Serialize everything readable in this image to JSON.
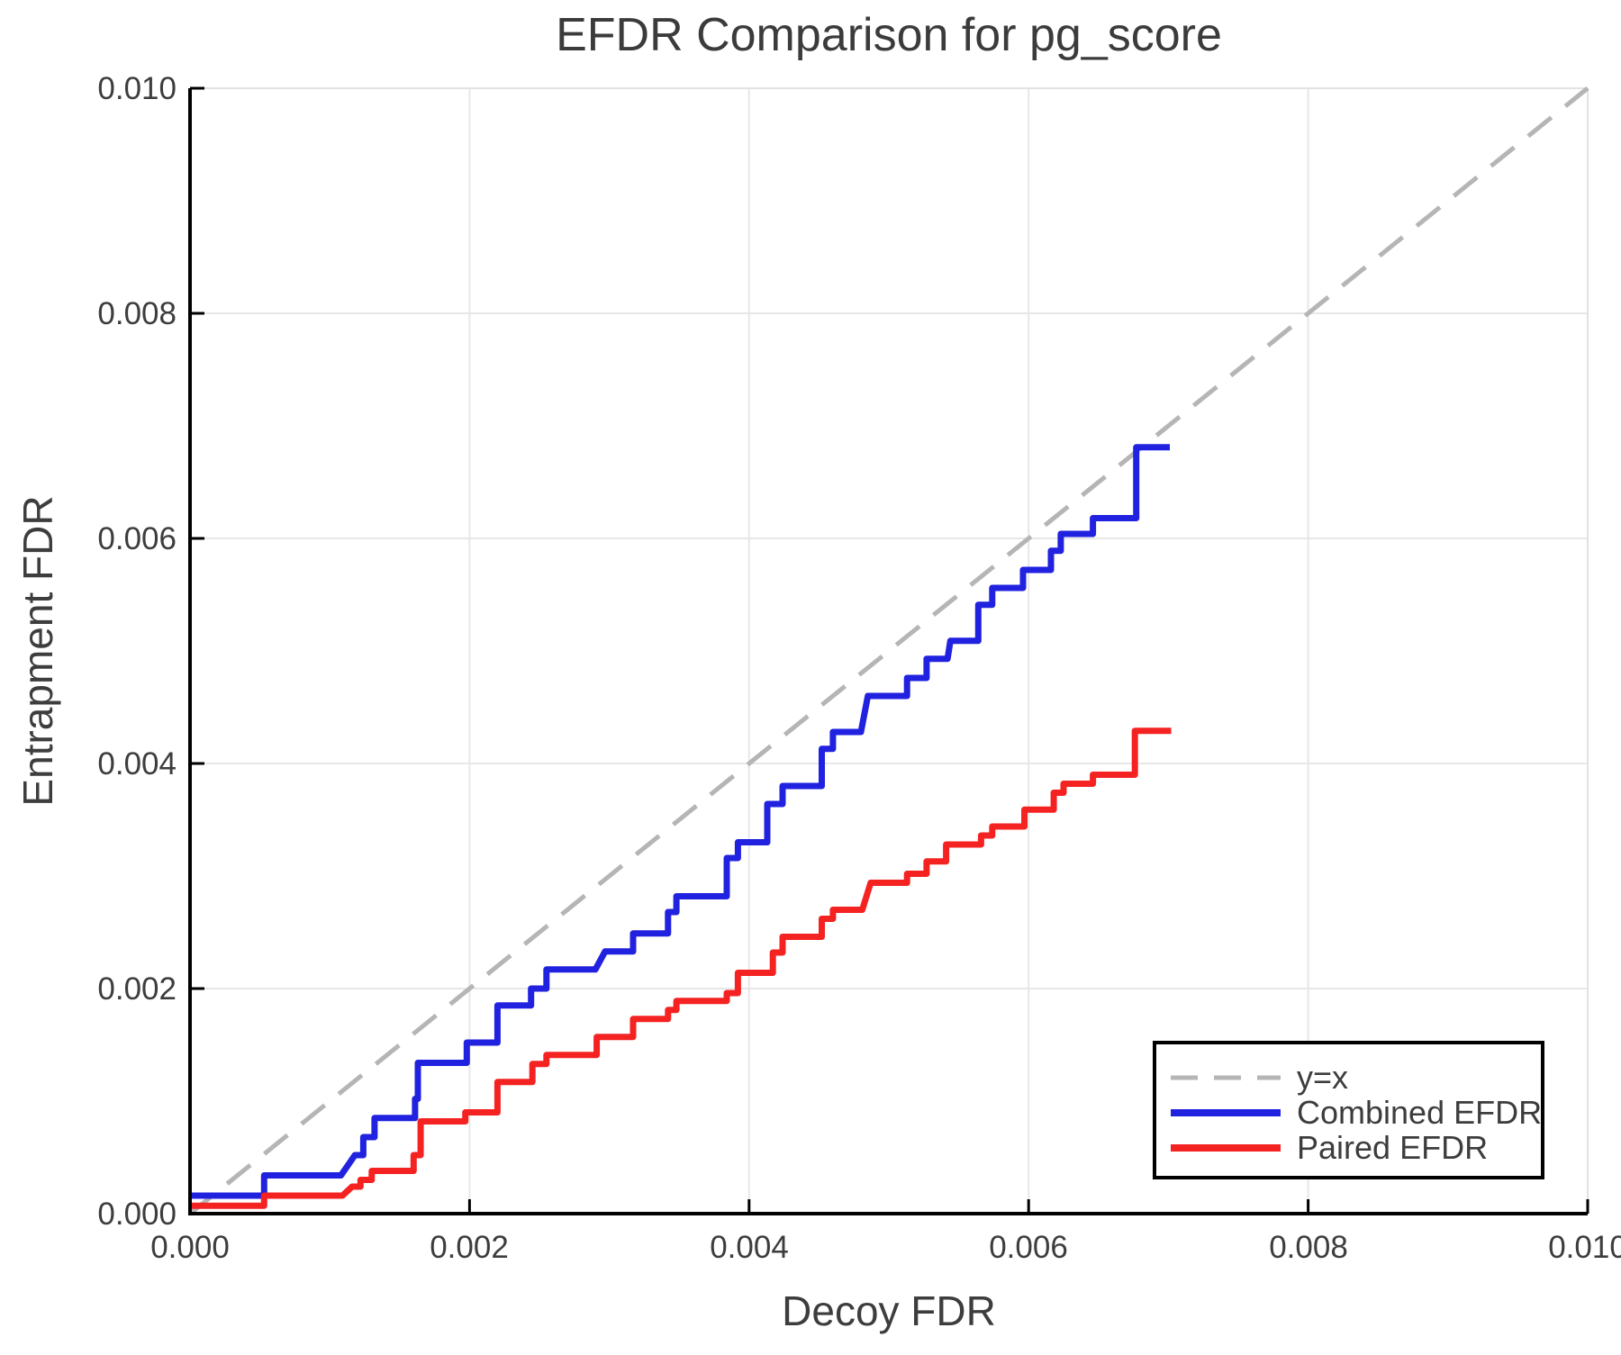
{
  "title": "EFDR Comparison for pg_score",
  "x_axis": {
    "label": "Decoy FDR",
    "ticks": [
      "0.000",
      "0.002",
      "0.004",
      "0.006",
      "0.008",
      "0.010"
    ]
  },
  "y_axis": {
    "label": "Entrapment FDR",
    "ticks": [
      "0.000",
      "0.002",
      "0.004",
      "0.006",
      "0.008",
      "0.010"
    ]
  },
  "legend": {
    "entries": [
      {
        "label": "y=x",
        "color": "#b5b5b5",
        "style": "dashed"
      },
      {
        "label": "Combined EFDR",
        "color": "#2121e0",
        "style": "solid"
      },
      {
        "label": "Paired EFDR",
        "color": "#f52222",
        "style": "solid"
      }
    ]
  },
  "colors": {
    "grid": "#e7e7e7",
    "spine_main": "#000000",
    "spine_faint": "#e2e2e2",
    "text": "#3d3d3d"
  },
  "chart_data": {
    "type": "line",
    "title": "EFDR Comparison for pg_score",
    "xlabel": "Decoy FDR",
    "ylabel": "Entrapment FDR",
    "xlim": [
      0,
      0.01
    ],
    "ylim": [
      0,
      0.01
    ],
    "xticks": [
      0,
      0.002,
      0.004,
      0.006,
      0.008,
      0.01
    ],
    "yticks": [
      0,
      0.002,
      0.004,
      0.006,
      0.008,
      0.01
    ],
    "grid": true,
    "legend_position": "lower right",
    "series": [
      {
        "name": "y=x",
        "style": "dashed",
        "color": "#b5b5b5",
        "points": [
          [
            0,
            0
          ],
          [
            0.01,
            0.01
          ]
        ]
      },
      {
        "name": "Combined EFDR",
        "style": "solid",
        "color": "#2121e0",
        "points": [
          [
            0.0,
            0.00016
          ],
          [
            0.00053,
            0.00016
          ],
          [
            0.00053,
            0.00034
          ],
          [
            0.00108,
            0.00034
          ],
          [
            0.00118,
            0.00052
          ],
          [
            0.00124,
            0.00052
          ],
          [
            0.00124,
            0.00068
          ],
          [
            0.00132,
            0.00068
          ],
          [
            0.00132,
            0.00085
          ],
          [
            0.00161,
            0.00085
          ],
          [
            0.00161,
            0.00102
          ],
          [
            0.00163,
            0.00102
          ],
          [
            0.00163,
            0.00134
          ],
          [
            0.00198,
            0.00134
          ],
          [
            0.00198,
            0.00152
          ],
          [
            0.0022,
            0.00152
          ],
          [
            0.0022,
            0.00185
          ],
          [
            0.00244,
            0.00185
          ],
          [
            0.00244,
            0.002
          ],
          [
            0.00255,
            0.002
          ],
          [
            0.00255,
            0.00217
          ],
          [
            0.0029,
            0.00217
          ],
          [
            0.00297,
            0.00233
          ],
          [
            0.00317,
            0.00233
          ],
          [
            0.00317,
            0.00249
          ],
          [
            0.00342,
            0.00249
          ],
          [
            0.00342,
            0.00268
          ],
          [
            0.00348,
            0.00268
          ],
          [
            0.00348,
            0.00282
          ],
          [
            0.00384,
            0.00282
          ],
          [
            0.00384,
            0.00316
          ],
          [
            0.00392,
            0.00316
          ],
          [
            0.00392,
            0.0033
          ],
          [
            0.00413,
            0.0033
          ],
          [
            0.00413,
            0.00364
          ],
          [
            0.00424,
            0.00364
          ],
          [
            0.00424,
            0.0038
          ],
          [
            0.00452,
            0.0038
          ],
          [
            0.00452,
            0.00413
          ],
          [
            0.0046,
            0.00413
          ],
          [
            0.0046,
            0.00428
          ],
          [
            0.0048,
            0.00428
          ],
          [
            0.00485,
            0.0046
          ],
          [
            0.00513,
            0.0046
          ],
          [
            0.00513,
            0.00476
          ],
          [
            0.00527,
            0.00476
          ],
          [
            0.00527,
            0.00493
          ],
          [
            0.00542,
            0.00493
          ],
          [
            0.00544,
            0.00509
          ],
          [
            0.00564,
            0.00509
          ],
          [
            0.00564,
            0.00541
          ],
          [
            0.00574,
            0.00541
          ],
          [
            0.00574,
            0.00556
          ],
          [
            0.00596,
            0.00556
          ],
          [
            0.00596,
            0.00572
          ],
          [
            0.00616,
            0.00572
          ],
          [
            0.00616,
            0.00589
          ],
          [
            0.00623,
            0.00589
          ],
          [
            0.00623,
            0.00604
          ],
          [
            0.00646,
            0.00604
          ],
          [
            0.00646,
            0.00618
          ],
          [
            0.00677,
            0.00618
          ],
          [
            0.00677,
            0.00681
          ],
          [
            0.00701,
            0.00681
          ]
        ]
      },
      {
        "name": "Paired EFDR",
        "style": "solid",
        "color": "#f52222",
        "points": [
          [
            0.0,
            7e-05
          ],
          [
            0.00053,
            7e-05
          ],
          [
            0.00053,
            0.00016
          ],
          [
            0.00109,
            0.00016
          ],
          [
            0.00116,
            0.00024
          ],
          [
            0.00122,
            0.00024
          ],
          [
            0.00122,
            0.0003
          ],
          [
            0.0013,
            0.0003
          ],
          [
            0.0013,
            0.00038
          ],
          [
            0.0016,
            0.00038
          ],
          [
            0.0016,
            0.00052
          ],
          [
            0.00165,
            0.00052
          ],
          [
            0.00165,
            0.00082
          ],
          [
            0.00197,
            0.00082
          ],
          [
            0.00197,
            0.0009
          ],
          [
            0.0022,
            0.0009
          ],
          [
            0.0022,
            0.00117
          ],
          [
            0.00245,
            0.00117
          ],
          [
            0.00245,
            0.00133
          ],
          [
            0.00255,
            0.00133
          ],
          [
            0.00255,
            0.00141
          ],
          [
            0.00291,
            0.00141
          ],
          [
            0.00291,
            0.00157
          ],
          [
            0.00317,
            0.00157
          ],
          [
            0.00317,
            0.00173
          ],
          [
            0.00342,
            0.00173
          ],
          [
            0.00342,
            0.00181
          ],
          [
            0.00348,
            0.00181
          ],
          [
            0.00348,
            0.00189
          ],
          [
            0.00384,
            0.00189
          ],
          [
            0.00384,
            0.00196
          ],
          [
            0.00392,
            0.00196
          ],
          [
            0.00392,
            0.00214
          ],
          [
            0.00417,
            0.00214
          ],
          [
            0.00417,
            0.00232
          ],
          [
            0.00424,
            0.00232
          ],
          [
            0.00424,
            0.00246
          ],
          [
            0.00452,
            0.00246
          ],
          [
            0.00452,
            0.00262
          ],
          [
            0.0046,
            0.00262
          ],
          [
            0.0046,
            0.0027
          ],
          [
            0.00481,
            0.0027
          ],
          [
            0.00487,
            0.00294
          ],
          [
            0.00513,
            0.00294
          ],
          [
            0.00513,
            0.00302
          ],
          [
            0.00527,
            0.00302
          ],
          [
            0.00527,
            0.00313
          ],
          [
            0.00541,
            0.00313
          ],
          [
            0.00541,
            0.00328
          ],
          [
            0.00566,
            0.00328
          ],
          [
            0.00566,
            0.00336
          ],
          [
            0.00574,
            0.00336
          ],
          [
            0.00574,
            0.00344
          ],
          [
            0.00597,
            0.00344
          ],
          [
            0.00597,
            0.00359
          ],
          [
            0.00618,
            0.00359
          ],
          [
            0.00618,
            0.00374
          ],
          [
            0.00625,
            0.00374
          ],
          [
            0.00625,
            0.00382
          ],
          [
            0.00646,
            0.00382
          ],
          [
            0.00646,
            0.0039
          ],
          [
            0.00676,
            0.0039
          ],
          [
            0.00676,
            0.00429
          ],
          [
            0.00702,
            0.00429
          ]
        ]
      }
    ]
  }
}
